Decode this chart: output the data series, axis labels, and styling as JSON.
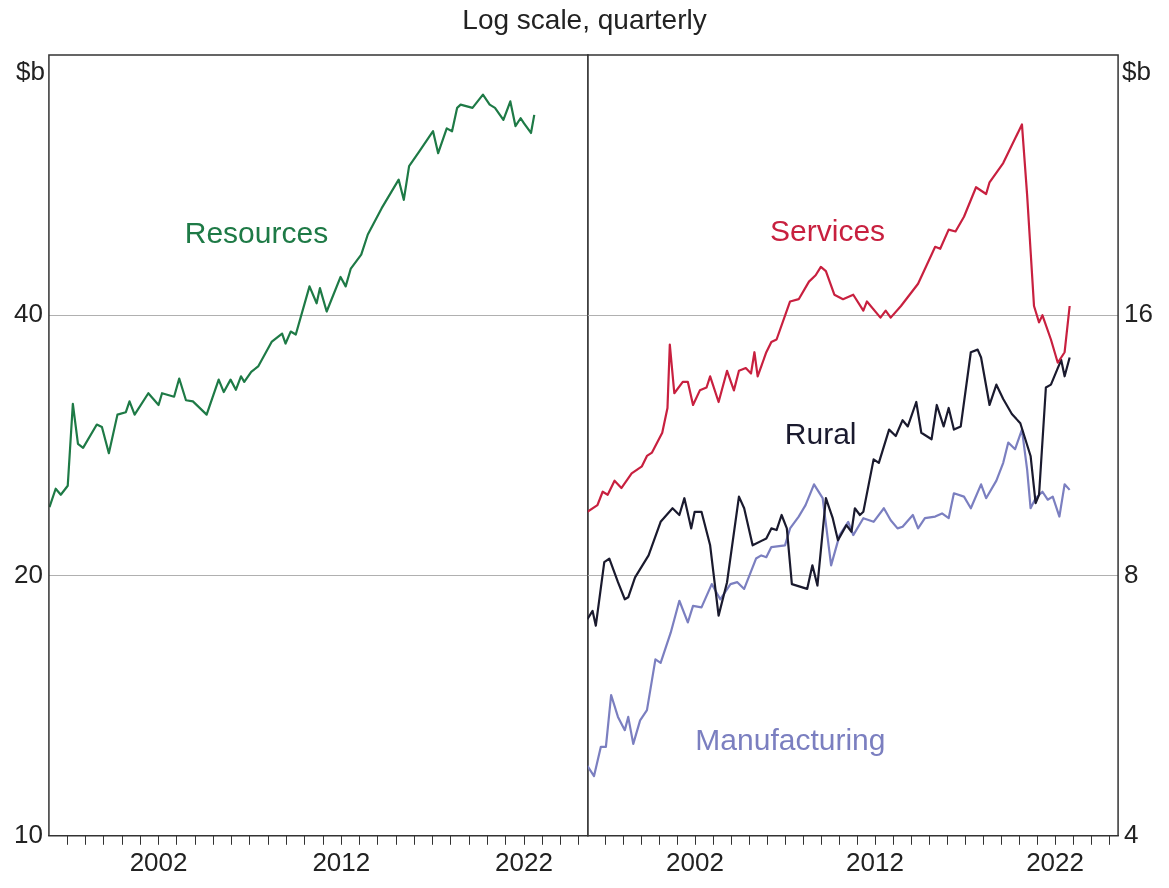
{
  "chart_data": [
    {
      "type": "line",
      "title": "Log scale, quarterly",
      "ylabel": "$b",
      "log": true,
      "grid": "y",
      "xlim": [
        1996,
        2025.5
      ],
      "ylim": [
        10,
        80
      ],
      "yticks": [
        10,
        20,
        40
      ],
      "xticks": [
        {
          "value": 1997,
          "label": null
        },
        {
          "value": 1998,
          "label": null
        },
        {
          "value": 1999,
          "label": null
        },
        {
          "value": 2000,
          "label": null
        },
        {
          "value": 2001,
          "label": null
        },
        2002,
        {
          "value": 2003,
          "label": null
        },
        {
          "value": 2004,
          "label": null
        },
        {
          "value": 2005,
          "label": null
        },
        {
          "value": 2006,
          "label": null
        },
        {
          "value": 2007,
          "label": null
        },
        {
          "value": 2008,
          "label": null
        },
        {
          "value": 2009,
          "label": null
        },
        {
          "value": 2010,
          "label": null
        },
        {
          "value": 2011,
          "label": null
        },
        2012,
        {
          "value": 2013,
          "label": null
        },
        {
          "value": 2014,
          "label": null
        },
        {
          "value": 2015,
          "label": null
        },
        {
          "value": 2016,
          "label": null
        },
        {
          "value": 2017,
          "label": null
        },
        {
          "value": 2018,
          "label": null
        },
        {
          "value": 2019,
          "label": null
        },
        {
          "value": 2020,
          "label": null
        },
        {
          "value": 2021,
          "label": null
        },
        2022,
        {
          "value": 2023,
          "label": null
        },
        {
          "value": 2024,
          "label": null
        },
        {
          "value": 2025,
          "label": null
        }
      ],
      "series": [
        {
          "name": "Resources",
          "color": "#1e7a46",
          "x": [
            1996.03,
            1996.37,
            1996.65,
            1997.03,
            1997.31,
            1997.59,
            1997.87,
            1998.62,
            1998.9,
            1999.28,
            1999.75,
            2000.21,
            2000.41,
            2000.69,
            2001.44,
            2002,
            2002.19,
            2002.85,
            2003.13,
            2003.5,
            2003.88,
            2004.63,
            2005.29,
            2005.57,
            2005.94,
            2006.23,
            2006.51,
            2006.69,
            2007.07,
            2007.45,
            2008.2,
            2008.76,
            2008.95,
            2009.23,
            2009.51,
            2010.26,
            2010.65,
            2010.83,
            2011.2,
            2011.96,
            2012.24,
            2012.52,
            2013.09,
            2013.45,
            2014.21,
            2015.14,
            2015.42,
            2015.71,
            2016.27,
            2017.02,
            2017.3,
            2017.77,
            2018.06,
            2018.34,
            2018.53,
            2019.18,
            2019.75,
            2020.12,
            2020.41,
            2020.87,
            2021.25,
            2021.53,
            2021.81,
            2022,
            2022.38,
            2022.56
          ],
          "values": [
            24.0,
            25.2,
            24.8,
            25.4,
            31.6,
            28.4,
            28.1,
            29.9,
            29.7,
            27.7,
            30.7,
            30.9,
            31.8,
            30.7,
            32.5,
            31.5,
            32.5,
            32.2,
            33.8,
            31.9,
            31.8,
            30.7,
            33.7,
            32.6,
            33.7,
            32.8,
            34.0,
            33.5,
            34.4,
            34.9,
            37.3,
            38.1,
            37.1,
            38.3,
            38.0,
            43.2,
            41.3,
            43.0,
            40.4,
            44.3,
            43.2,
            45.3,
            47.0,
            49.6,
            53.2,
            57.4,
            54.4,
            59.5,
            61.9,
            65.3,
            61.6,
            65.8,
            65.3,
            69.5,
            70.1,
            69.5,
            72.0,
            70.1,
            69.5,
            67.3,
            70.7,
            66.2,
            67.6,
            66.7,
            65.0,
            68.2
          ]
        }
      ]
    },
    {
      "type": "line",
      "y2label": "$b",
      "log": "y2",
      "grid": "y",
      "xlim": [
        1996,
        2025.5
      ],
      "y2lim": [
        4,
        32
      ],
      "y2ticks": [
        4,
        8,
        16
      ],
      "xticks": [
        {
          "value": 1997,
          "label": null
        },
        {
          "value": 1998,
          "label": null
        },
        {
          "value": 1999,
          "label": null
        },
        {
          "value": 2000,
          "label": null
        },
        {
          "value": 2001,
          "label": null
        },
        2002,
        {
          "value": 2003,
          "label": null
        },
        {
          "value": 2004,
          "label": null
        },
        {
          "value": 2005,
          "label": null
        },
        {
          "value": 2006,
          "label": null
        },
        {
          "value": 2007,
          "label": null
        },
        {
          "value": 2008,
          "label": null
        },
        {
          "value": 2009,
          "label": null
        },
        {
          "value": 2010,
          "label": null
        },
        {
          "value": 2011,
          "label": null
        },
        2012,
        {
          "value": 2013,
          "label": null
        },
        {
          "value": 2014,
          "label": null
        },
        {
          "value": 2015,
          "label": null
        },
        {
          "value": 2016,
          "label": null
        },
        {
          "value": 2017,
          "label": null
        },
        {
          "value": 2018,
          "label": null
        },
        {
          "value": 2019,
          "label": null
        },
        {
          "value": 2020,
          "label": null
        },
        {
          "value": 2021,
          "label": null
        },
        2022,
        {
          "value": 2023,
          "label": null
        },
        {
          "value": 2024,
          "label": null
        },
        {
          "value": 2025,
          "label": null
        }
      ],
      "series": [
        {
          "name": "Services",
          "color": "#c8203f",
          "axis": "y2",
          "x": [
            1996.02,
            1996.58,
            1996.87,
            1997.15,
            1997.53,
            1997.91,
            1998.48,
            1999.05,
            1999.33,
            1999.61,
            2000.18,
            2000.47,
            2000.6,
            2000.85,
            2001.32,
            2001.6,
            2001.89,
            2002.27,
            2002.64,
            2002.84,
            2003.31,
            2003.78,
            2004.16,
            2004.44,
            2004.82,
            2005.11,
            2005.3,
            2005.48,
            2005.96,
            2006.24,
            2006.53,
            2007.28,
            2007.76,
            2008.33,
            2008.7,
            2008.99,
            2009.27,
            2009.74,
            2010.22,
            2010.79,
            2011.35,
            2011.55,
            2012.3,
            2012.59,
            2012.87,
            2013.44,
            2014.39,
            2015.34,
            2015.62,
            2016.09,
            2016.47,
            2016.94,
            2017.61,
            2018.17,
            2018.36,
            2019.12,
            2020.16,
            2020.45,
            2020.83,
            2021.11,
            2021.3,
            2021.77,
            2022.15,
            2022.53,
            2022.81
          ],
          "values": [
            9.48,
            9.65,
            10.0,
            9.92,
            10.3,
            10.1,
            10.5,
            10.7,
            11.0,
            11.1,
            11.7,
            12.5,
            14.8,
            13.0,
            13.4,
            13.4,
            12.6,
            13.1,
            13.2,
            13.6,
            12.7,
            13.8,
            13.1,
            13.8,
            13.9,
            13.7,
            14.5,
            13.6,
            14.5,
            14.9,
            15.0,
            16.6,
            16.7,
            17.5,
            17.8,
            18.2,
            18.0,
            16.9,
            16.7,
            16.9,
            16.2,
            16.6,
            15.9,
            16.2,
            15.9,
            16.4,
            17.4,
            19.2,
            19.1,
            20.1,
            20.0,
            20.8,
            22.5,
            22.1,
            22.8,
            24.0,
            26.6,
            22.0,
            16.4,
            15.7,
            16.0,
            15.0,
            14.1,
            14.5,
            16.4
          ]
        },
        {
          "name": "Rural",
          "color": "#1a1a2e",
          "axis": "y2",
          "x": [
            1996.02,
            1996.31,
            1996.49,
            1996.96,
            1997.24,
            1997.72,
            1998.1,
            1998.29,
            1998.67,
            1999.42,
            2000.09,
            2000.75,
            2001.13,
            2001.41,
            2001.79,
            2001.98,
            2002.36,
            2002.84,
            2003.31,
            2003.78,
            2004.44,
            2004.73,
            2005.2,
            2005.96,
            2006.24,
            2006.53,
            2006.81,
            2007.1,
            2007.38,
            2008.23,
            2008.52,
            2008.8,
            2009.27,
            2009.65,
            2009.94,
            2010.41,
            2010.69,
            2010.88,
            2011.16,
            2011.35,
            2011.92,
            2012.21,
            2012.78,
            2013.15,
            2013.53,
            2013.82,
            2014.29,
            2014.57,
            2015.14,
            2015.43,
            2015.81,
            2016.09,
            2016.38,
            2016.76,
            2017.32,
            2017.7,
            2017.89,
            2018.36,
            2018.74,
            2019.12,
            2019.6,
            2020.07,
            2020.64,
            2020.92,
            2021.11,
            2021.49,
            2021.77,
            2022.15,
            2022.34,
            2022.53,
            2022.81
          ],
          "values": [
            7.12,
            7.28,
            7.0,
            8.29,
            8.37,
            7.86,
            7.51,
            7.55,
            7.96,
            8.44,
            9.23,
            9.57,
            9.4,
            9.83,
            9.07,
            9.48,
            9.48,
            8.67,
            7.19,
            7.86,
            9.87,
            9.57,
            8.67,
            8.83,
            9.07,
            9.03,
            9.4,
            9.07,
            7.82,
            7.72,
            8.22,
            7.79,
            9.83,
            9.32,
            8.79,
            9.15,
            8.99,
            9.57,
            9.4,
            9.48,
            10.9,
            10.8,
            11.8,
            11.6,
            12.1,
            11.9,
            12.7,
            11.7,
            11.5,
            12.6,
            11.9,
            12.5,
            11.8,
            11.9,
            14.5,
            14.6,
            14.3,
            12.6,
            13.3,
            12.8,
            12.3,
            12.0,
            11.0,
            9.7,
            9.92,
            13.2,
            13.3,
            13.9,
            14.2,
            13.6,
            14.3
          ]
        },
        {
          "name": "Manufacturing",
          "color": "#7b7fc0",
          "axis": "y2",
          "x": [
            1996.02,
            1996.39,
            1996.77,
            1997.05,
            1997.34,
            1997.72,
            1998.1,
            1998.29,
            1998.57,
            1998.95,
            1999.33,
            1999.8,
            2000.09,
            2000.65,
            2001.13,
            2001.6,
            2001.89,
            2002.36,
            2002.93,
            2003.4,
            2003.97,
            2004.35,
            2004.73,
            2005.39,
            2005.68,
            2005.96,
            2006.24,
            2007,
            2007.28,
            2007.76,
            2008.14,
            2008.61,
            2009.09,
            2009.56,
            2010.03,
            2010.51,
            2010.79,
            2011.35,
            2011.92,
            2012.49,
            2012.87,
            2013.25,
            2013.53,
            2014.1,
            2014.39,
            2014.77,
            2015.34,
            2015.72,
            2016.09,
            2016.38,
            2016.94,
            2017.32,
            2017.89,
            2018.17,
            2018.74,
            2019.12,
            2019.4,
            2019.78,
            2020.16,
            2020.45,
            2020.64,
            2020.92,
            2021.3,
            2021.59,
            2021.87,
            2022.24,
            2022.53,
            2022.81
          ],
          "values": [
            4.82,
            4.69,
            5.07,
            5.07,
            5.82,
            5.49,
            5.3,
            5.49,
            5.11,
            5.44,
            5.59,
            6.4,
            6.34,
            6.87,
            7.48,
            7.06,
            7.38,
            7.35,
            7.82,
            7.51,
            7.82,
            7.86,
            7.72,
            8.37,
            8.44,
            8.4,
            8.63,
            8.67,
            9.07,
            9.36,
            9.65,
            10.2,
            9.83,
            8.22,
            8.91,
            9.23,
            8.91,
            9.32,
            9.23,
            9.57,
            9.27,
            9.07,
            9.11,
            9.4,
            9.07,
            9.32,
            9.36,
            9.44,
            9.32,
            9.96,
            9.87,
            9.57,
            10.2,
            9.83,
            10.3,
            10.8,
            11.4,
            11.2,
            11.8,
            10.6,
            9.57,
            9.83,
            10.0,
            9.79,
            9.87,
            9.36,
            10.2,
            10.05
          ]
        }
      ]
    }
  ]
}
